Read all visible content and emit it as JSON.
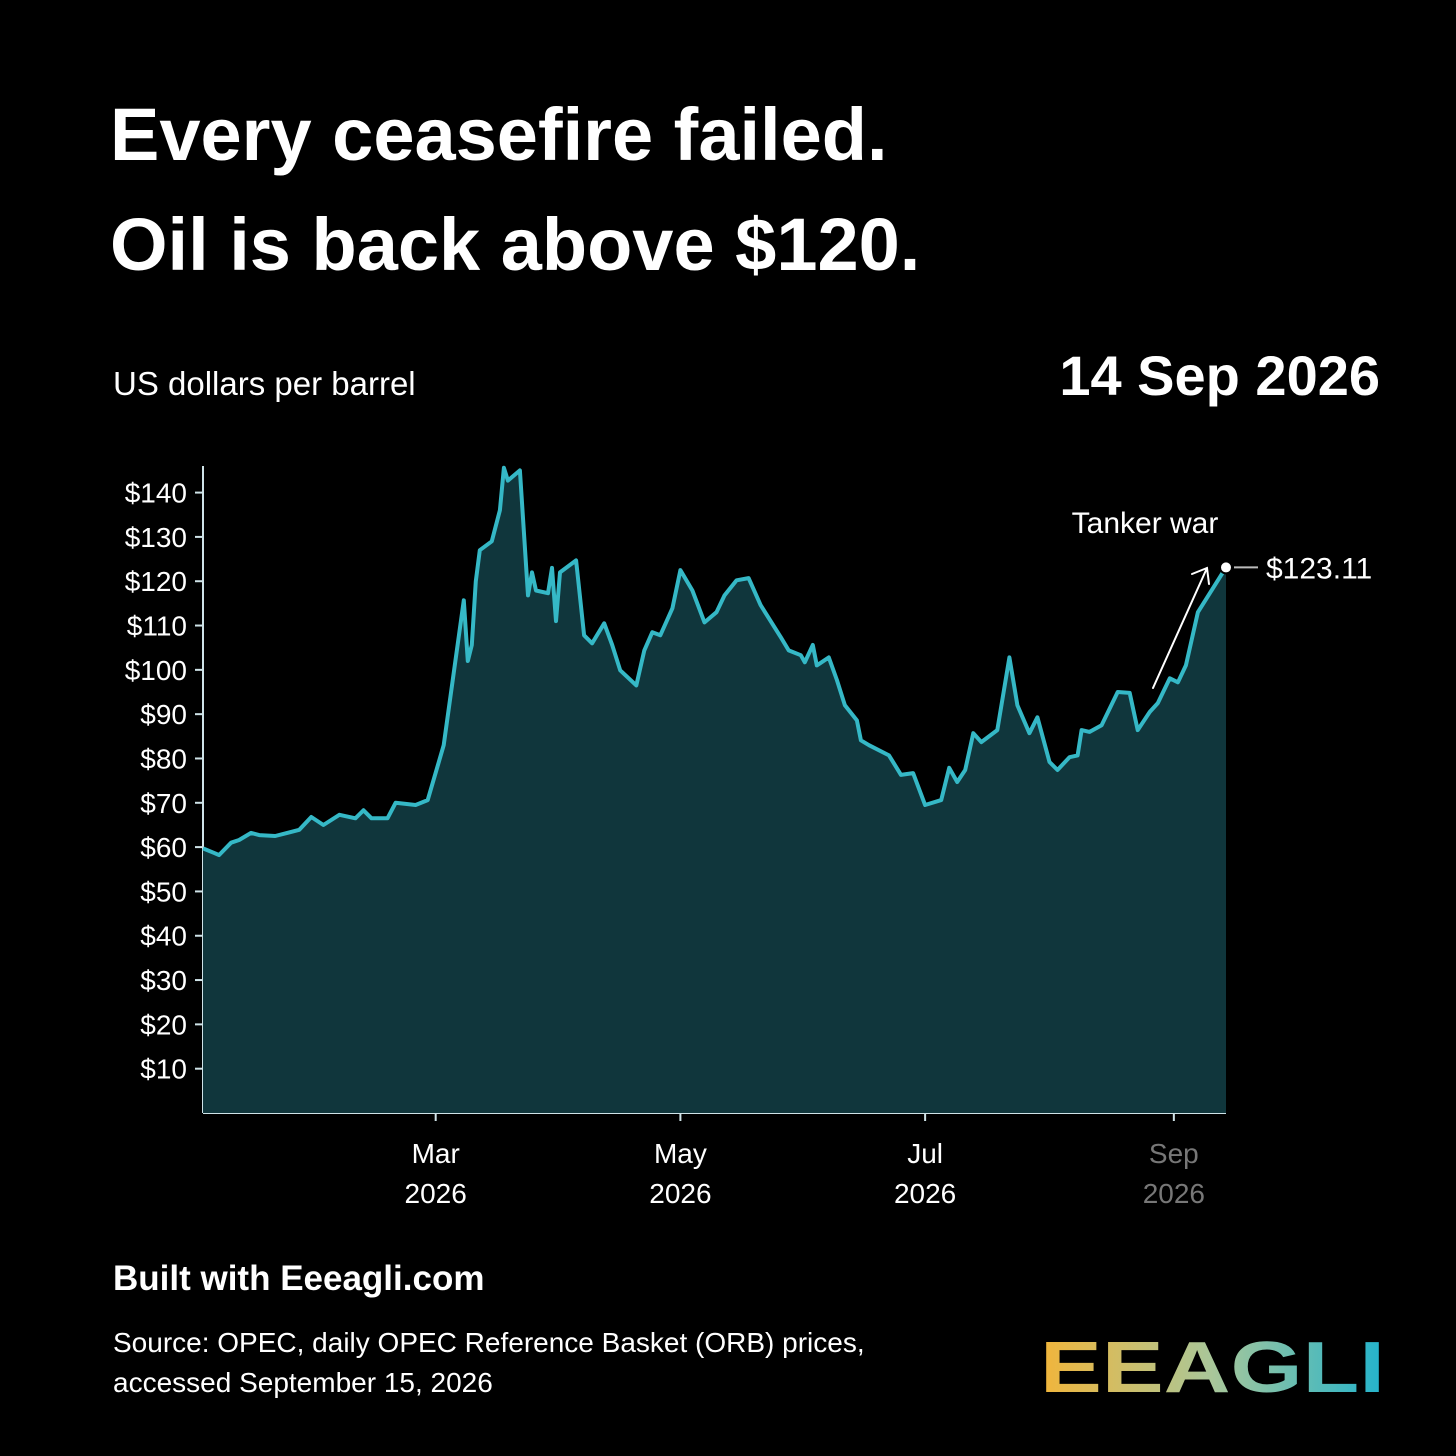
{
  "chart_data": {
    "type": "area",
    "title": [
      "Every ceasefire failed.",
      "Oil is back above $120."
    ],
    "subtitle": "US dollars per barrel",
    "date_label": "14 Sep 2026",
    "annotation": "Tanker war",
    "color": "#35b8c6",
    "fill": "#10363c",
    "x": [
      "2026-01-02",
      "2026-01-05",
      "2026-01-06",
      "2026-01-09",
      "2026-01-11",
      "2026-01-14",
      "2026-01-16",
      "2026-01-20",
      "2026-01-23",
      "2026-01-26",
      "2026-01-29",
      "2026-02-01",
      "2026-02-05",
      "2026-02-09",
      "2026-02-11",
      "2026-02-13",
      "2026-02-17",
      "2026-02-19",
      "2026-02-24",
      "2026-02-27",
      "2026-03-03",
      "2026-03-08",
      "2026-03-09",
      "2026-03-10",
      "2026-03-11",
      "2026-03-12",
      "2026-03-15",
      "2026-03-17",
      "2026-03-18",
      "2026-03-19",
      "2026-03-22",
      "2026-03-24",
      "2026-03-25",
      "2026-03-26",
      "2026-03-29",
      "2026-03-30",
      "2026-03-31",
      "2026-04-01",
      "2026-04-05",
      "2026-04-07",
      "2026-04-09",
      "2026-04-12",
      "2026-04-14",
      "2026-04-16",
      "2026-04-20",
      "2026-04-22",
      "2026-04-24",
      "2026-04-26",
      "2026-04-29",
      "2026-05-01",
      "2026-05-04",
      "2026-05-07",
      "2026-05-10",
      "2026-05-12",
      "2026-05-15",
      "2026-05-18",
      "2026-05-21",
      "2026-05-26",
      "2026-05-28",
      "2026-05-31",
      "2026-06-01",
      "2026-06-03",
      "2026-06-04",
      "2026-06-07",
      "2026-06-09",
      "2026-06-11",
      "2026-06-14",
      "2026-06-15",
      "2026-06-17",
      "2026-06-22",
      "2026-06-25",
      "2026-06-28",
      "2026-07-01",
      "2026-07-05",
      "2026-07-07",
      "2026-07-09",
      "2026-07-11",
      "2026-07-13",
      "2026-07-15",
      "2026-07-19",
      "2026-07-22",
      "2026-07-24",
      "2026-07-27",
      "2026-07-29",
      "2026-08-01",
      "2026-08-03",
      "2026-08-06",
      "2026-08-08",
      "2026-08-09",
      "2026-08-11",
      "2026-08-14",
      "2026-08-18",
      "2026-08-21",
      "2026-08-23",
      "2026-08-26",
      "2026-08-28",
      "2026-08-31",
      "2026-09-02",
      "2026-09-04",
      "2026-09-07",
      "2026-09-14"
    ],
    "values": [
      59.7,
      58.6,
      58.2,
      61,
      61.6,
      63.2,
      62.7,
      62.5,
      63.2,
      63.9,
      66.8,
      65,
      67.3,
      66.5,
      68.3,
      66.5,
      66.5,
      70,
      69.5,
      70.6,
      83,
      115.7,
      102,
      105.6,
      120,
      127,
      129,
      136,
      145.6,
      142.7,
      145,
      116.8,
      122,
      117.9,
      117.3,
      123,
      111,
      122,
      124.7,
      107.8,
      106,
      110.5,
      105.6,
      99.9,
      96.5,
      104.4,
      108.5,
      107.8,
      113.9,
      122.5,
      117.9,
      110.7,
      113,
      116.8,
      120.2,
      120.7,
      114.6,
      107.4,
      104.4,
      103.3,
      101.7,
      105.6,
      101,
      102.8,
      97.7,
      92,
      88.6,
      84.1,
      83,
      80.7,
      76.3,
      76.7,
      69.5,
      70.6,
      77.9,
      74.7,
      77.4,
      85.7,
      83.7,
      86.4,
      102.8,
      92,
      85.7,
      89.3,
      79.2,
      77.4,
      80.3,
      80.7,
      86.4,
      86,
      87.5,
      95,
      94.8,
      86.4,
      90.5,
      92.5,
      98.1,
      97.2,
      101,
      113,
      123.11
    ],
    "value_labels": [
      null,
      null,
      null,
      null,
      null,
      null,
      null,
      null,
      null,
      null,
      null,
      null,
      null,
      null,
      null,
      null,
      null,
      null,
      null,
      null,
      null,
      null,
      null,
      null,
      null,
      null,
      null,
      null,
      null,
      null,
      null,
      null,
      null,
      null,
      null,
      null,
      null,
      null,
      null,
      null,
      null,
      null,
      null,
      null,
      null,
      null,
      null,
      null,
      null,
      null,
      null,
      null,
      null,
      null,
      null,
      null,
      null,
      null,
      null,
      null,
      null,
      null,
      null,
      null,
      null,
      null,
      null,
      null,
      null,
      null,
      null,
      null,
      null,
      null,
      null,
      null,
      null,
      null,
      null,
      null,
      null,
      null,
      null,
      null,
      null,
      null,
      null,
      null,
      null,
      null,
      null,
      null,
      null,
      null,
      null,
      null,
      null,
      null,
      null,
      null,
      "$123.11"
    ],
    "xlim": [
      "2026-01-02",
      "2026-09-14"
    ],
    "xticks": [
      {
        "value": "2026-03-01",
        "label": "Mar 2026"
      },
      {
        "value": "2026-05-01",
        "label": "May 2026"
      },
      {
        "value": "2026-07-01",
        "label": "Jul 2026"
      },
      {
        "value": "2026-09-01",
        "label": "Sep 2026"
      }
    ],
    "ylim": [
      0,
      146
    ],
    "yticks": [
      {
        "value": 10,
        "label": "$10"
      },
      {
        "value": 20,
        "label": "$20"
      },
      {
        "value": 30,
        "label": "$30"
      },
      {
        "value": 40,
        "label": "$40"
      },
      {
        "value": 50,
        "label": "$50"
      },
      {
        "value": 60,
        "label": "$60"
      },
      {
        "value": 70,
        "label": "$70"
      },
      {
        "value": 80,
        "label": "$80"
      },
      {
        "value": 90,
        "label": "$90"
      },
      {
        "value": 100,
        "label": "$100"
      },
      {
        "value": 110,
        "label": "$110"
      },
      {
        "value": 120,
        "label": "$120"
      },
      {
        "value": 130,
        "label": "$130"
      },
      {
        "value": 140,
        "label": "$140"
      }
    ]
  },
  "footer": {
    "built_with": "Built with Eeeagli.com",
    "source": [
      "Source: OPEC, daily OPEC Reference Basket (ORB) prices,",
      "accessed September 15, 2026"
    ],
    "logo": "EEAGLI"
  }
}
